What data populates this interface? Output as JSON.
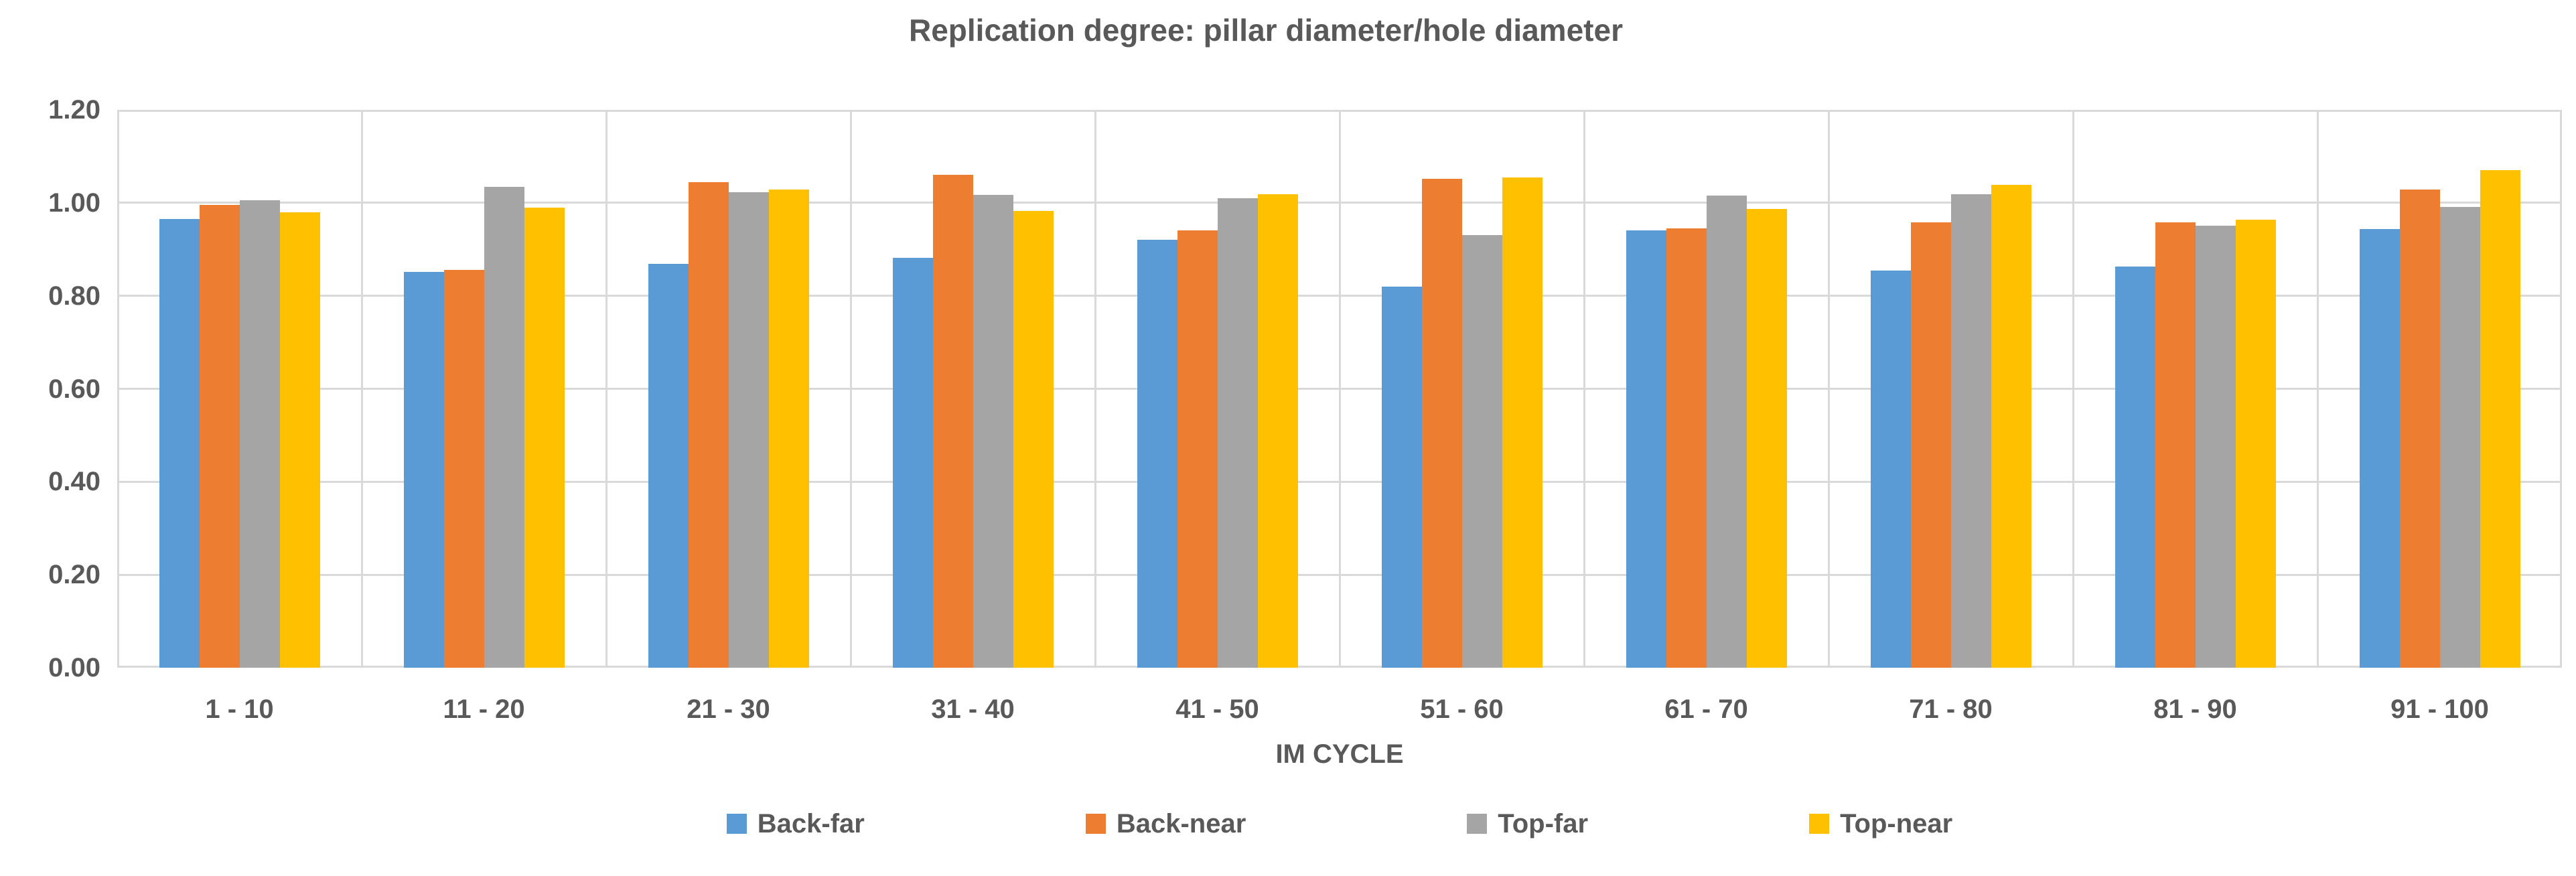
{
  "title": "Replication degree: pillar diameter/hole diameter",
  "x_axis_title": "IM CYCLE",
  "colors": {
    "text": "#595959",
    "gridline": "#D9D9D9",
    "background": "#FFFFFF",
    "series_back_far": "#5B9BD5",
    "series_back_near": "#ED7D31",
    "series_top_far": "#A5A5A5",
    "series_top_near": "#FFC000"
  },
  "legend": {
    "position": "bottom",
    "labels": [
      "Back-far",
      "Back-near",
      "Top-far",
      "Top-near"
    ]
  },
  "chart_data": {
    "type": "bar",
    "title": "Replication degree: pillar diameter/hole diameter",
    "xlabel": "IM CYCLE",
    "ylabel": "",
    "ylim": [
      0,
      1.2
    ],
    "ytick_step": 0.2,
    "ytick_decimals": 2,
    "grid": true,
    "legend_position": "bottom",
    "categories": [
      "1 - 10",
      "11 - 20",
      "21 - 30",
      "31 - 40",
      "41 - 50",
      "51 - 60",
      "61 - 70",
      "71 - 80",
      "81 - 90",
      "91 - 100"
    ],
    "series": [
      {
        "name": "Back-far",
        "color": "#5B9BD5",
        "values": [
          0.965,
          0.852,
          0.868,
          0.882,
          0.92,
          0.819,
          0.94,
          0.855,
          0.863,
          0.944
        ]
      },
      {
        "name": "Back-near",
        "color": "#ED7D31",
        "values": [
          0.995,
          0.856,
          1.045,
          1.06,
          0.941,
          1.052,
          0.945,
          0.958,
          0.958,
          1.028
        ]
      },
      {
        "name": "Top-far",
        "color": "#A5A5A5",
        "values": [
          1.005,
          1.034,
          1.023,
          1.017,
          1.01,
          0.931,
          1.016,
          1.018,
          0.951,
          0.991
        ]
      },
      {
        "name": "Top-near",
        "color": "#FFC000",
        "values": [
          0.98,
          0.99,
          1.028,
          0.983,
          1.018,
          1.054,
          0.987,
          1.039,
          0.964,
          1.07
        ]
      }
    ]
  }
}
